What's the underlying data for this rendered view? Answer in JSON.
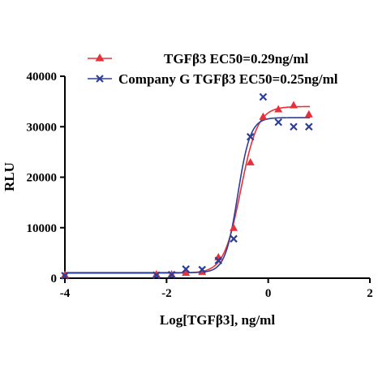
{
  "chart_data": {
    "type": "scatter",
    "title": "",
    "xlabel": "Log[TGFβ3], ng/ml",
    "ylabel": "RLU",
    "xlim": [
      -4,
      2
    ],
    "ylim": [
      0,
      40000
    ],
    "xticks": [
      -4,
      -2,
      0,
      2
    ],
    "yticks": [
      0,
      10000,
      20000,
      30000,
      40000
    ],
    "xtick_labels": [
      "-4",
      "-2",
      "0",
      "2"
    ],
    "ytick_labels": [
      "0",
      "10000",
      "20000",
      "30000",
      "40000"
    ],
    "grid": false,
    "legend_position": "top",
    "series": [
      {
        "name": "TGFβ3 EC50=0.29ng/ml",
        "color": "#e8303a",
        "marker": "triangle",
        "fit": {
          "model": "4PL",
          "bottom": 1000,
          "top": 34000,
          "log_ec50": -0.54,
          "hill": 2.6
        },
        "points": [
          {
            "x": -4.0,
            "y": 700
          },
          {
            "x": -2.2,
            "y": 800
          },
          {
            "x": -1.9,
            "y": 800
          },
          {
            "x": -1.62,
            "y": 1100
          },
          {
            "x": -1.3,
            "y": 1300
          },
          {
            "x": -0.98,
            "y": 4200
          },
          {
            "x": -0.68,
            "y": 10000
          },
          {
            "x": -0.35,
            "y": 23000
          },
          {
            "x": -0.1,
            "y": 32000
          },
          {
            "x": 0.2,
            "y": 33500
          },
          {
            "x": 0.5,
            "y": 34300
          },
          {
            "x": 0.8,
            "y": 32500
          }
        ]
      },
      {
        "name": "Company G TGFβ3 EC50=0.25ng/ml",
        "color": "#2d3e97",
        "marker": "x",
        "fit": {
          "model": "4PL",
          "bottom": 1100,
          "top": 31800,
          "log_ec50": -0.6,
          "hill": 3.5
        },
        "points": [
          {
            "x": -4.0,
            "y": 500
          },
          {
            "x": -2.2,
            "y": 600
          },
          {
            "x": -1.9,
            "y": 700
          },
          {
            "x": -1.62,
            "y": 1800
          },
          {
            "x": -1.3,
            "y": 1700
          },
          {
            "x": -0.98,
            "y": 3500
          },
          {
            "x": -0.68,
            "y": 7800
          },
          {
            "x": -0.35,
            "y": 28000
          },
          {
            "x": -0.1,
            "y": 35900
          },
          {
            "x": 0.2,
            "y": 30900
          },
          {
            "x": 0.5,
            "y": 30000
          },
          {
            "x": 0.8,
            "y": 30000
          }
        ]
      }
    ]
  }
}
